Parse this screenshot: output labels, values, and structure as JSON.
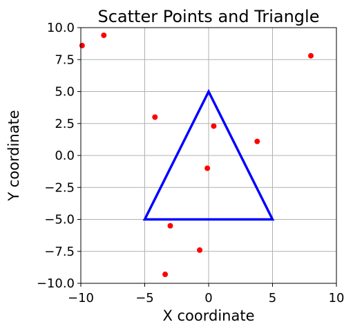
{
  "chart_data": {
    "type": "scatter",
    "title": "Scatter Points and Triangle",
    "xlabel": "X coordinate",
    "ylabel": "Y coordinate",
    "xlim": [
      -10,
      10
    ],
    "ylim": [
      -10,
      10
    ],
    "grid": true,
    "x_ticks": [
      -10,
      -5,
      0,
      5,
      10
    ],
    "x_tick_labels": [
      "−10",
      "−5",
      "0",
      "5",
      "10"
    ],
    "y_ticks": [
      10,
      7.5,
      5,
      2.5,
      0,
      -2.5,
      -5,
      -7.5,
      -10
    ],
    "y_tick_labels": [
      "10.0",
      "7.5",
      "5.0",
      "2.5",
      "0.0",
      "−2.5",
      "−5.0",
      "−7.5",
      "−10.0"
    ],
    "points": {
      "color": "#ff0000",
      "x": [
        -9.9,
        -8.2,
        8.0,
        -4.2,
        0.4,
        3.8,
        -0.1,
        -3.0,
        -0.7,
        -3.4
      ],
      "y": [
        8.6,
        9.4,
        7.8,
        3.0,
        2.3,
        1.1,
        -1.0,
        -5.5,
        -7.4,
        -9.3
      ]
    },
    "triangle": {
      "color": "#0000ff",
      "vertices": [
        [
          0,
          5
        ],
        [
          5,
          -5
        ],
        [
          -5,
          -5
        ]
      ]
    }
  }
}
